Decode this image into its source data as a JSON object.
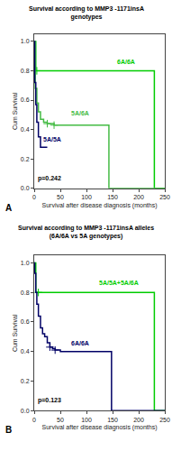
{
  "chart_data": [
    {
      "type": "step",
      "title": "Survival according to MMP3 -1171insA\ngenotypes",
      "xlabel": "Survival after disease diagnosis (months)",
      "ylabel": "Cum Survival",
      "panel_label": "A",
      "xlim": [
        0,
        250
      ],
      "ylim": [
        0.0,
        1.05
      ],
      "xticks": [
        0,
        50,
        100,
        150,
        200,
        250
      ],
      "yticks": [
        {
          "value": 0.0,
          "label": "0.0"
        },
        0.2,
        0.4,
        0.6,
        0.8,
        {
          "value": 1.0,
          "label": "1.0"
        }
      ],
      "grid": false,
      "series": [
        {
          "color": "#00cc00",
          "x": [
            0,
            3,
            5,
            230,
            230,
            250
          ],
          "values": [
            1.0,
            0.8,
            0.8,
            0.8,
            0.0,
            0.0
          ],
          "marker": "plus",
          "censored": {
            "x": [
              5
            ],
            "values": [
              0.8
            ]
          }
        },
        {
          "color": "#44bb44",
          "x": [
            0,
            2,
            5,
            8,
            12,
            18,
            25,
            38,
            40,
            143,
            143,
            250
          ],
          "values": [
            1.0,
            0.68,
            0.58,
            0.52,
            0.47,
            0.45,
            0.44,
            0.43,
            0.43,
            0.43,
            0.0,
            0.0
          ],
          "marker": "plus",
          "censored": {
            "x": [
              25,
              38
            ],
            "values": [
              0.44,
              0.43
            ]
          }
        },
        {
          "color": "#000066",
          "x": [
            0,
            1,
            3,
            5,
            8,
            12,
            18,
            25,
            25
          ],
          "values": [
            1.0,
            0.72,
            0.57,
            0.45,
            0.35,
            0.28,
            0.28,
            0.28,
            0.28
          ]
        }
      ],
      "annotations": [
        {
          "text": "6A/6A",
          "x": 155,
          "y": 0.83,
          "color": "#00cc00"
        },
        {
          "text": "5A/6A",
          "x": 68,
          "y": 0.48,
          "color": "#44bb44"
        },
        {
          "text": "5A/5A",
          "x": 14,
          "y": 0.3,
          "color": "#000066"
        },
        {
          "text": "p=0.242",
          "x": 3,
          "y": 0.03,
          "color": "black"
        }
      ]
    },
    {
      "type": "step",
      "title": "Survival according to MMP3 -1171insA alleles\n(6A/6A vs 5A genotypes)",
      "xlabel": "Survival after disease diagnosis (months)",
      "ylabel": "Cum Survival",
      "panel_label": "B",
      "xlim": [
        0,
        250
      ],
      "ylim": [
        0.0,
        1.05
      ],
      "xticks": [
        0,
        50,
        100,
        150,
        200,
        250
      ],
      "yticks": [
        {
          "value": 0.0,
          "label": "0.0"
        },
        0.2,
        0.4,
        0.6,
        0.8,
        {
          "value": 1.0,
          "label": "1.0"
        }
      ],
      "grid": false,
      "series": [
        {
          "color": "#00cc00",
          "x": [
            0,
            3,
            8,
            230,
            230,
            250
          ],
          "values": [
            1.0,
            0.8,
            0.8,
            0.8,
            0.0,
            0.0
          ],
          "marker": "plus",
          "censored": {
            "x": [
              8
            ],
            "values": [
              0.8
            ]
          }
        },
        {
          "color": "#000066",
          "x": [
            0,
            1,
            3,
            5,
            8,
            12,
            16,
            20,
            25,
            30,
            35,
            40,
            50,
            148,
            148,
            250
          ],
          "values": [
            1.0,
            0.93,
            0.8,
            0.72,
            0.64,
            0.56,
            0.52,
            0.5,
            0.46,
            0.43,
            0.42,
            0.41,
            0.4,
            0.4,
            0.0,
            0.0
          ],
          "marker": "plus",
          "censored": {
            "x": [
              30,
              40
            ],
            "values": [
              0.43,
              0.41
            ]
          }
        }
      ],
      "annotations": [
        {
          "text": "5A/5A+5A/6A",
          "x": 120,
          "y": 0.83,
          "color": "#00cc00"
        },
        {
          "text": "6A/6A",
          "x": 68,
          "y": 0.42,
          "color": "#000066"
        },
        {
          "text": "p=0.123",
          "x": 3,
          "y": 0.03,
          "color": "black"
        }
      ]
    }
  ]
}
